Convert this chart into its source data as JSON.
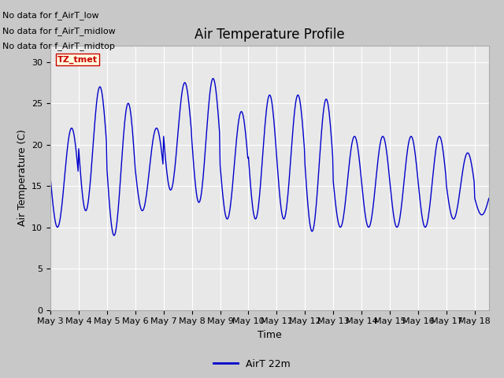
{
  "title": "Air Temperature Profile",
  "xlabel": "Time",
  "ylabel": "Air Temperature (C)",
  "legend_label": "AirT 22m",
  "text_lines": [
    "No data for f_AirT_low",
    "No data for f_AirT_midlow",
    "No data for f_AirT_midtop"
  ],
  "tz_label": "TZ_tmet",
  "line_color": "#0000cc",
  "fig_bg_color": "#c8c8c8",
  "plot_bg_color": "#e8e8e8",
  "ylim": [
    0,
    32
  ],
  "yticks": [
    0,
    5,
    10,
    15,
    20,
    25,
    30
  ],
  "title_fontsize": 12,
  "axis_fontsize": 9,
  "tick_fontsize": 8,
  "text_fontsize": 8,
  "tz_fontsize": 8
}
